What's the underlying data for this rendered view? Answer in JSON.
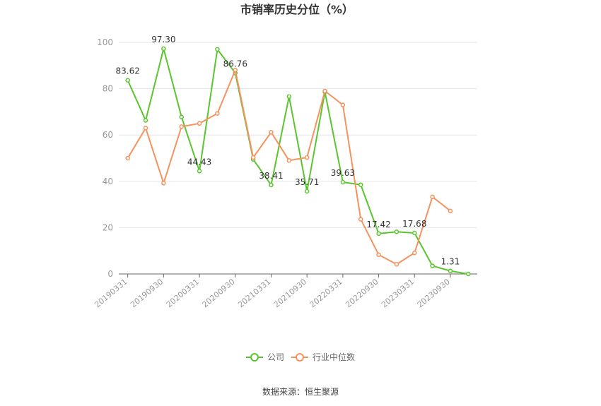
{
  "chart_data": {
    "type": "line",
    "title": "市销率历史分位（%）",
    "xlabel": "",
    "ylabel": "",
    "ylim": [
      0,
      100
    ],
    "yticks": [
      0,
      20,
      40,
      60,
      80,
      100
    ],
    "x": [
      "20190331",
      "20190630",
      "20190930",
      "20191231",
      "20200331",
      "20200630",
      "20200930",
      "20201231",
      "20210331",
      "20210630",
      "20210930",
      "20211231",
      "20220331",
      "20220630",
      "20220930",
      "20221231",
      "20230331",
      "20230630",
      "20230930",
      "20231231"
    ],
    "x_tick_labels": [
      "20190331",
      "20190930",
      "20200331",
      "20200930",
      "20210331",
      "20210930",
      "20220331",
      "20220930",
      "20230331",
      "20230930"
    ],
    "grid": true,
    "legend_position": "bottom",
    "series": [
      {
        "name": "公司",
        "color": "#5ac52e",
        "values": [
          83.62,
          66.3,
          97.3,
          67.8,
          44.43,
          97.0,
          86.76,
          49.5,
          38.41,
          76.6,
          35.71,
          78.6,
          39.63,
          38.5,
          17.42,
          18.2,
          17.68,
          3.5,
          1.31,
          0.0
        ],
        "labels": {
          "0": "83.62",
          "2": "97.30",
          "4": "44.43",
          "6": "86.76",
          "8": "38.41",
          "10": "35.71",
          "12": "39.63",
          "14": "17.42",
          "16": "17.68",
          "18": "1.31"
        }
      },
      {
        "name": "行业中位数",
        "color": "#f5925e",
        "values": [
          50.0,
          63.0,
          39.2,
          63.6,
          65.0,
          69.3,
          88.0,
          50.3,
          61.2,
          49.0,
          50.3,
          79.0,
          73.0,
          23.6,
          8.3,
          4.2,
          9.1,
          33.3,
          27.2,
          null
        ]
      }
    ]
  },
  "source_text": "数据来源：恒生聚源"
}
